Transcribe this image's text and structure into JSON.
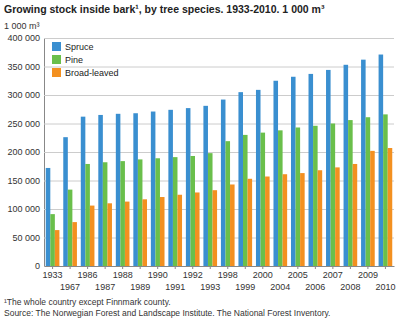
{
  "chart_data": {
    "type": "bar",
    "title": "Growing stock inside bark¹, by tree species. 1933-2010. 1 000 m³",
    "y_label": "1 000 m³",
    "annotations": [
      "¹The whole country except Finnmark county.",
      "Source: The Norwegian Forest and Landscape Institute. The National Forest Inventory."
    ],
    "categories": [
      "1933",
      "1967",
      "1986",
      "1987",
      "1988",
      "1989",
      "1990",
      "1991",
      "1992",
      "1993",
      "1998",
      "1999",
      "2000",
      "2004",
      "2005",
      "2006",
      "2007",
      "2008",
      "2009",
      "2010"
    ],
    "series": [
      {
        "name": "Spruce",
        "color": "#3a8fd0",
        "values": [
          172000,
          226000,
          262000,
          265000,
          267000,
          268000,
          271000,
          274000,
          277000,
          281000,
          292000,
          305000,
          309000,
          325000,
          332000,
          337000,
          344000,
          353000,
          362000,
          371000
        ]
      },
      {
        "name": "Pine",
        "color": "#6abf4b",
        "values": [
          91000,
          134000,
          179000,
          182000,
          184000,
          187000,
          189000,
          191000,
          193000,
          198000,
          219000,
          230000,
          234000,
          238000,
          243000,
          246000,
          250000,
          256000,
          261000,
          266000
        ]
      },
      {
        "name": "Broad-leaved",
        "color": "#f39020",
        "values": [
          63000,
          77000,
          106000,
          110000,
          113000,
          117000,
          121000,
          125000,
          129000,
          133000,
          143000,
          153000,
          157000,
          161000,
          163000,
          168000,
          173000,
          179000,
          202000,
          207000
        ]
      }
    ],
    "ylim": [
      0,
      400000
    ],
    "yticks": [
      0,
      {
        "value": 50000,
        "label": "50 000"
      },
      {
        "value": 100000,
        "label": "100 000"
      },
      {
        "value": 150000,
        "label": "150 000"
      },
      {
        "value": 200000,
        "label": "200 000"
      },
      {
        "value": 250000,
        "label": "250 000"
      },
      {
        "value": 300000,
        "label": "300 000"
      },
      {
        "value": 350000,
        "label": "350 000"
      },
      {
        "value": 400000,
        "label": "400 000"
      }
    ],
    "grid": true,
    "legend": "upper left"
  }
}
